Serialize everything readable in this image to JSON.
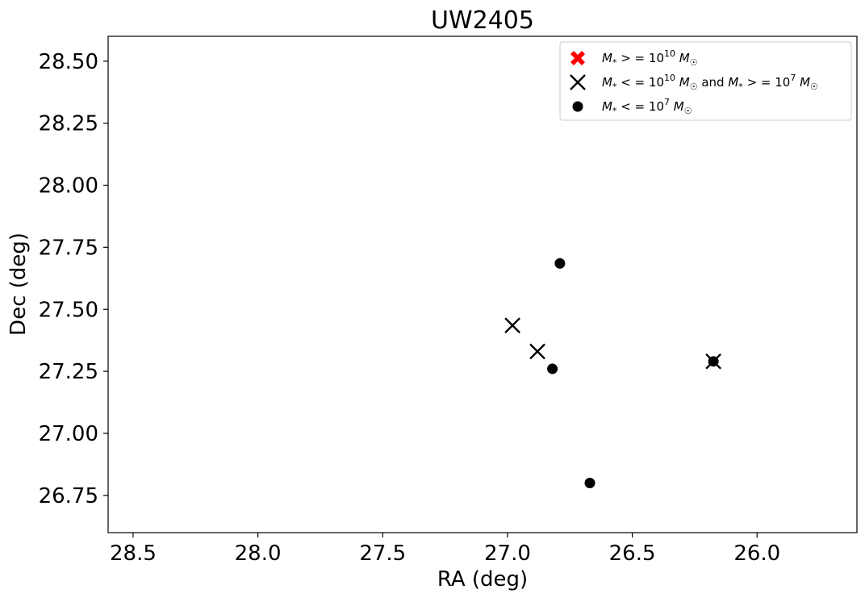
{
  "chart_data": {
    "type": "scatter",
    "title": "UW2405",
    "xlabel": "RA (deg)",
    "ylabel": "Dec (deg)",
    "xlim": [
      28.6,
      25.6
    ],
    "ylim": [
      26.6,
      28.6
    ],
    "x_inverted": true,
    "xticks": [
      28.5,
      28.0,
      27.5,
      27.0,
      26.5,
      26.0
    ],
    "xtick_labels": [
      "28.5",
      "28.0",
      "27.5",
      "27.0",
      "26.5",
      "26.0"
    ],
    "yticks": [
      26.75,
      27.0,
      27.25,
      27.5,
      27.75,
      28.0,
      28.25,
      28.5
    ],
    "ytick_labels": [
      "26.75",
      "27.00",
      "27.25",
      "27.50",
      "27.75",
      "28.00",
      "28.25",
      "28.50"
    ],
    "grid": false,
    "legend_position": "top-right",
    "series": [
      {
        "name": "M* >= 10^10 M☉",
        "marker": "filled-x",
        "color": "#ff0000",
        "points": []
      },
      {
        "name": "M* <= 10^10 M☉ and M* >= 10^7 M☉",
        "marker": "x",
        "color": "#000000",
        "points": [
          {
            "x": 26.98,
            "y": 27.435
          },
          {
            "x": 26.88,
            "y": 27.33
          },
          {
            "x": 26.175,
            "y": 27.29
          }
        ]
      },
      {
        "name": "M* <= 10^7 M☉",
        "marker": "circle",
        "color": "#000000",
        "points": [
          {
            "x": 26.79,
            "y": 27.685
          },
          {
            "x": 26.82,
            "y": 27.26
          },
          {
            "x": 26.67,
            "y": 26.8
          },
          {
            "x": 26.175,
            "y": 27.29
          }
        ]
      }
    ]
  }
}
